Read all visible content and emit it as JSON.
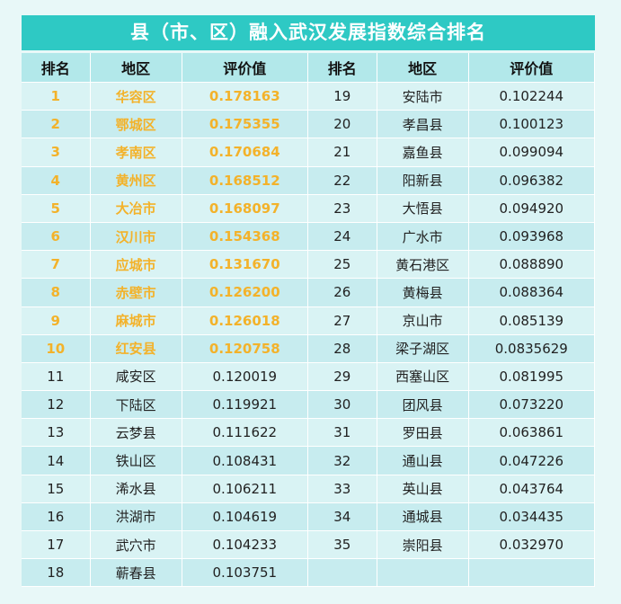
{
  "title": "县（市、区）融入武汉发展指数综合排名",
  "headers": {
    "rank": "排名",
    "region": "地区",
    "value": "评价值"
  },
  "left_rows": [
    {
      "rank": "1",
      "region": "华容区",
      "value": "0.178163"
    },
    {
      "rank": "2",
      "region": "鄂城区",
      "value": "0.175355"
    },
    {
      "rank": "3",
      "region": "孝南区",
      "value": "0.170684"
    },
    {
      "rank": "4",
      "region": "黄州区",
      "value": "0.168512"
    },
    {
      "rank": "5",
      "region": "大冶市",
      "value": "0.168097"
    },
    {
      "rank": "6",
      "region": "汉川市",
      "value": "0.154368"
    },
    {
      "rank": "7",
      "region": "应城市",
      "value": "0.131670"
    },
    {
      "rank": "8",
      "region": "赤壁市",
      "value": "0.126200"
    },
    {
      "rank": "9",
      "region": "麻城市",
      "value": "0.126018"
    },
    {
      "rank": "10",
      "region": "红安县",
      "value": "0.120758"
    },
    {
      "rank": "11",
      "region": "咸安区",
      "value": "0.120019"
    },
    {
      "rank": "12",
      "region": "下陆区",
      "value": "0.119921"
    },
    {
      "rank": "13",
      "region": "云梦县",
      "value": "0.111622"
    },
    {
      "rank": "14",
      "region": "铁山区",
      "value": "0.108431"
    },
    {
      "rank": "15",
      "region": "浠水县",
      "value": "0.106211"
    },
    {
      "rank": "16",
      "region": "洪湖市",
      "value": "0.104619"
    },
    {
      "rank": "17",
      "region": "武穴市",
      "value": "0.104233"
    },
    {
      "rank": "18",
      "region": "蕲春县",
      "value": "0.103751"
    }
  ],
  "right_rows": [
    {
      "rank": "19",
      "region": "安陆市",
      "value": "0.102244"
    },
    {
      "rank": "20",
      "region": "孝昌县",
      "value": "0.100123"
    },
    {
      "rank": "21",
      "region": "嘉鱼县",
      "value": "0.099094"
    },
    {
      "rank": "22",
      "region": "阳新县",
      "value": "0.096382"
    },
    {
      "rank": "23",
      "region": "大悟县",
      "value": "0.094920"
    },
    {
      "rank": "24",
      "region": "广水市",
      "value": "0.093968"
    },
    {
      "rank": "25",
      "region": "黄石港区",
      "value": "0.088890"
    },
    {
      "rank": "26",
      "region": "黄梅县",
      "value": "0.088364"
    },
    {
      "rank": "27",
      "region": "京山市",
      "value": "0.085139"
    },
    {
      "rank": "28",
      "region": "梁子湖区",
      "value": "0.0835629"
    },
    {
      "rank": "29",
      "region": "西塞山区",
      "value": "0.081995"
    },
    {
      "rank": "30",
      "region": "团风县",
      "value": "0.073220"
    },
    {
      "rank": "31",
      "region": "罗田县",
      "value": "0.063861"
    },
    {
      "rank": "32",
      "region": "通山县",
      "value": "0.047226"
    },
    {
      "rank": "33",
      "region": "英山县",
      "value": "0.043764"
    },
    {
      "rank": "34",
      "region": "通城县",
      "value": "0.034435"
    },
    {
      "rank": "35",
      "region": "崇阳县",
      "value": "0.032970"
    }
  ],
  "colors": {
    "title_bg": "#2ec9c4",
    "header_bg": "#b2e8ea",
    "row_light": "#d9f3f4",
    "row_dark": "#c7ecef",
    "top10_text": "#f3b22a"
  }
}
